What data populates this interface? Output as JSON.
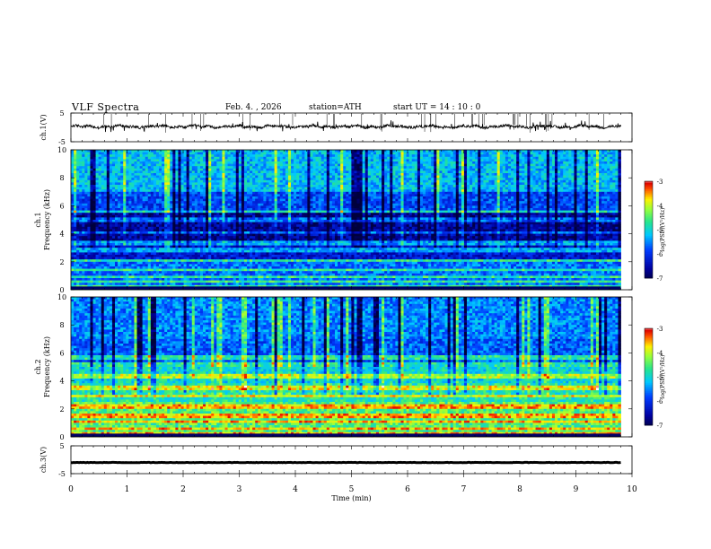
{
  "header": {
    "title": "VLF  Spectra",
    "date": "Feb. 4.  , 2026",
    "station": "station=ATH",
    "start": "start  UT  =    14 : 10 : 0"
  },
  "chart_data": [
    {
      "type": "line",
      "name": "ch1-waveform",
      "ylabel": "ch.1(V)",
      "ylim": [
        -5,
        5
      ],
      "y_ticks": [
        "5",
        "-5"
      ],
      "xlim": [
        0,
        10
      ],
      "x_data_range": [
        0,
        9.8
      ],
      "baseline": 0.3,
      "line_color": "#000000"
    },
    {
      "type": "heatmap",
      "name": "ch1-spectrogram",
      "ylabel": "ch.1\nFrequency  (kHz)",
      "ylabel_top": "ch.1",
      "ylabel_main": "Frequency  (kHz)",
      "ylim": [
        0,
        10
      ],
      "y_ticks": [
        "0",
        "2",
        "4",
        "6",
        "8",
        "10"
      ],
      "xlim": [
        0,
        10
      ],
      "x_data_range": [
        0,
        9.8
      ],
      "colorbar": {
        "label": "log(PSD)(V²/Hz)",
        "range": [
          -7,
          -3
        ],
        "ticks": [
          "-3",
          "-4",
          "-5",
          "-6",
          "-7"
        ]
      }
    },
    {
      "type": "heatmap",
      "name": "ch2-spectrogram",
      "ylabel_top": "ch.2",
      "ylabel_main": "Frequency  (kHz)",
      "ylim": [
        0,
        10
      ],
      "y_ticks": [
        "0",
        "2",
        "4",
        "6",
        "8",
        "10"
      ],
      "xlim": [
        0,
        10
      ],
      "x_data_range": [
        0,
        9.8
      ],
      "colorbar": {
        "label": "log(PSD)(V²/Hz)",
        "range": [
          -7,
          -3
        ],
        "ticks": [
          "-3",
          "-4",
          "-5",
          "-6",
          "-7"
        ]
      }
    },
    {
      "type": "line",
      "name": "ch3-waveform",
      "ylabel": "ch.3(V)",
      "ylim": [
        -5,
        5
      ],
      "y_ticks": [
        "5",
        "-5"
      ],
      "xlim": [
        0,
        10
      ],
      "x_data_range": [
        0,
        9.8
      ],
      "baseline": -1,
      "xlabel": "Time  (min)",
      "x_ticks": [
        "0",
        "1",
        "2",
        "3",
        "4",
        "5",
        "6",
        "7",
        "8",
        "9",
        "10"
      ]
    }
  ]
}
